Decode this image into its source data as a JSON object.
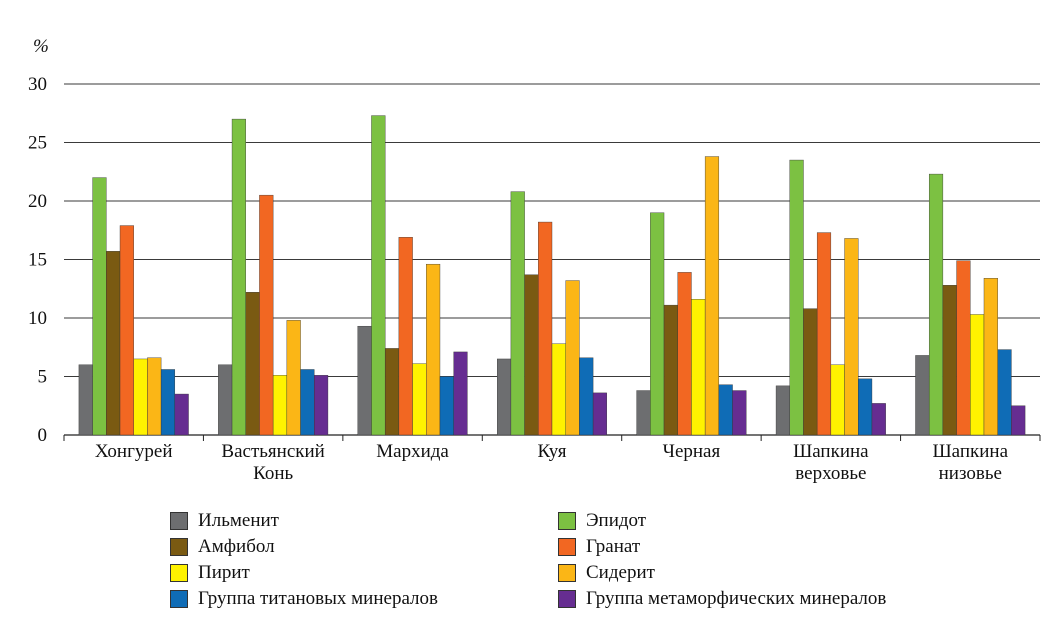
{
  "chart_data": {
    "type": "bar",
    "ylabel": "%",
    "ylim": [
      0,
      30
    ],
    "yticks": [
      0,
      5,
      10,
      15,
      20,
      25,
      30
    ],
    "grid": true,
    "legend_position": "bottom",
    "categories": [
      [
        "Хонгурей"
      ],
      [
        "Вастьянский",
        "Конь"
      ],
      [
        "Мархида"
      ],
      [
        "Куя"
      ],
      [
        "Черная"
      ],
      [
        "Шапкина",
        "верховье"
      ],
      [
        "Шапкина",
        "низовье"
      ]
    ],
    "series": [
      {
        "name": "Ильменит",
        "color": "#6d6e70",
        "values": [
          6.0,
          6.0,
          9.3,
          6.5,
          3.8,
          4.2,
          6.8
        ]
      },
      {
        "name": "Эпидот",
        "color": "#7cc142",
        "values": [
          22.0,
          27.0,
          27.3,
          20.8,
          19.0,
          23.5,
          22.3
        ]
      },
      {
        "name": "Амфибол",
        "color": "#7a5a12",
        "values": [
          15.7,
          12.2,
          7.4,
          13.7,
          11.1,
          10.8,
          12.8
        ]
      },
      {
        "name": "Гранат",
        "color": "#f26722",
        "values": [
          17.9,
          20.5,
          16.9,
          18.2,
          13.9,
          17.3,
          14.9
        ]
      },
      {
        "name": "Пирит",
        "color": "#fff200",
        "values": [
          6.5,
          5.1,
          6.1,
          7.8,
          11.6,
          6.0,
          10.3
        ]
      },
      {
        "name": "Сидерит",
        "color": "#fbb616",
        "values": [
          6.6,
          9.8,
          14.6,
          13.2,
          23.8,
          16.8,
          13.4
        ]
      },
      {
        "name": "Группа титановых минералов",
        "color": "#0f6cb6",
        "values": [
          5.6,
          5.6,
          5.0,
          6.6,
          4.3,
          4.8,
          7.3
        ]
      },
      {
        "name": "Группа метаморфических минералов",
        "color": "#662d91",
        "values": [
          3.5,
          5.1,
          7.1,
          3.6,
          3.8,
          2.7,
          2.5
        ]
      }
    ]
  }
}
